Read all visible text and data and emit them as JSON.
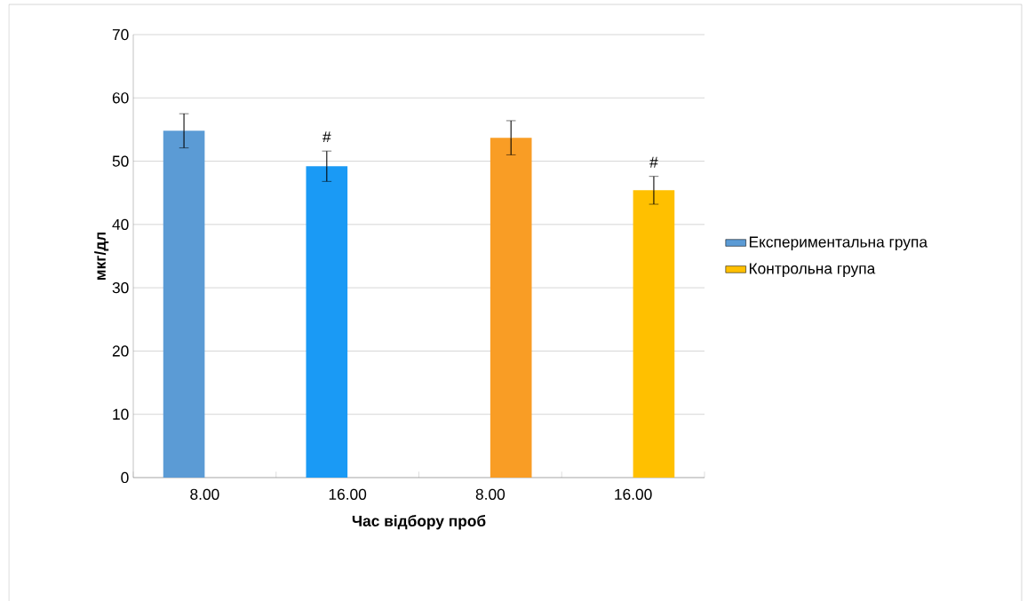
{
  "chart_data": {
    "type": "bar",
    "xlabel": "Час відбору проб",
    "ylabel": "мкг/дл",
    "categories": [
      "8.00",
      "16.00",
      "8.00",
      "16.00"
    ],
    "series": [
      {
        "name": "Експериментальна група",
        "color": "#5b9bd5",
        "colors": [
          "#5b9bd5",
          "#1a9af5",
          null,
          null
        ],
        "values": [
          54.8,
          49.2,
          null,
          null
        ],
        "errors": [
          2.7,
          2.4,
          null,
          null
        ]
      },
      {
        "name": "Контрольна група",
        "color": "#ffc000",
        "colors": [
          null,
          null,
          "#f99d25",
          "#ffc000"
        ],
        "values": [
          null,
          null,
          53.7,
          45.4
        ],
        "errors": [
          null,
          null,
          2.7,
          2.2
        ]
      }
    ],
    "annotations": [
      "#",
      "#"
    ],
    "ylim": [
      0,
      70
    ],
    "yticks": [
      0,
      10,
      20,
      30,
      40,
      50,
      60,
      70
    ],
    "grid": "y",
    "legend": "right"
  }
}
